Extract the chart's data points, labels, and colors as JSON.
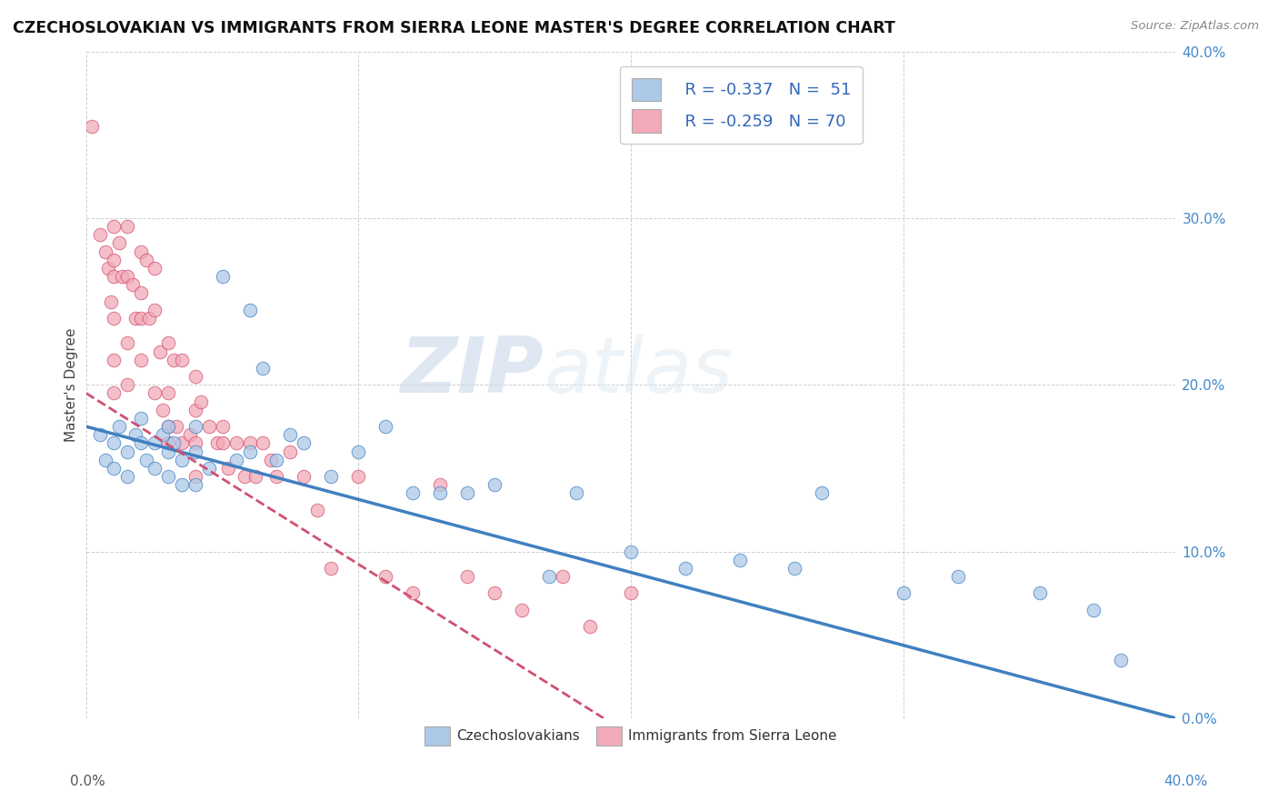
{
  "title": "CZECHOSLOVAKIAN VS IMMIGRANTS FROM SIERRA LEONE MASTER'S DEGREE CORRELATION CHART",
  "source": "Source: ZipAtlas.com",
  "ylabel": "Master's Degree",
  "legend_blue_R": "R = -0.337",
  "legend_blue_N": "N =  51",
  "legend_pink_R": "R = -0.259",
  "legend_pink_N": "N = 70",
  "legend1_label": "Czechoslovakians",
  "legend2_label": "Immigrants from Sierra Leone",
  "blue_color": "#adc9e8",
  "blue_line_color": "#4080c0",
  "pink_color": "#f2aab8",
  "pink_line_color": "#d05070",
  "watermark_zip": "ZIP",
  "watermark_atlas": "atlas",
  "xlim": [
    0.0,
    0.4
  ],
  "ylim": [
    0.0,
    0.4
  ],
  "ytick_values": [
    0.0,
    0.1,
    0.2,
    0.3,
    0.4
  ],
  "xtick_values": [
    0.0,
    0.1,
    0.2,
    0.3,
    0.4
  ],
  "blue_scatter_x": [
    0.005,
    0.007,
    0.01,
    0.01,
    0.012,
    0.015,
    0.015,
    0.018,
    0.02,
    0.02,
    0.022,
    0.025,
    0.025,
    0.028,
    0.03,
    0.03,
    0.03,
    0.032,
    0.035,
    0.035,
    0.04,
    0.04,
    0.04,
    0.045,
    0.05,
    0.055,
    0.06,
    0.06,
    0.065,
    0.07,
    0.075,
    0.08,
    0.09,
    0.1,
    0.11,
    0.12,
    0.13,
    0.14,
    0.15,
    0.17,
    0.18,
    0.2,
    0.22,
    0.24,
    0.26,
    0.27,
    0.3,
    0.32,
    0.35,
    0.37,
    0.38
  ],
  "blue_scatter_y": [
    0.17,
    0.155,
    0.165,
    0.15,
    0.175,
    0.16,
    0.145,
    0.17,
    0.18,
    0.165,
    0.155,
    0.165,
    0.15,
    0.17,
    0.175,
    0.16,
    0.145,
    0.165,
    0.155,
    0.14,
    0.175,
    0.16,
    0.14,
    0.15,
    0.265,
    0.155,
    0.245,
    0.16,
    0.21,
    0.155,
    0.17,
    0.165,
    0.145,
    0.16,
    0.175,
    0.135,
    0.135,
    0.135,
    0.14,
    0.085,
    0.135,
    0.1,
    0.09,
    0.095,
    0.09,
    0.135,
    0.075,
    0.085,
    0.075,
    0.065,
    0.035
  ],
  "pink_scatter_x": [
    0.002,
    0.005,
    0.007,
    0.008,
    0.009,
    0.01,
    0.01,
    0.01,
    0.01,
    0.01,
    0.01,
    0.012,
    0.013,
    0.015,
    0.015,
    0.015,
    0.015,
    0.017,
    0.018,
    0.02,
    0.02,
    0.02,
    0.02,
    0.022,
    0.023,
    0.025,
    0.025,
    0.025,
    0.027,
    0.028,
    0.03,
    0.03,
    0.03,
    0.03,
    0.032,
    0.033,
    0.035,
    0.035,
    0.038,
    0.04,
    0.04,
    0.04,
    0.04,
    0.042,
    0.045,
    0.048,
    0.05,
    0.05,
    0.052,
    0.055,
    0.058,
    0.06,
    0.062,
    0.065,
    0.068,
    0.07,
    0.075,
    0.08,
    0.085,
    0.09,
    0.1,
    0.11,
    0.12,
    0.13,
    0.14,
    0.15,
    0.16,
    0.175,
    0.185,
    0.2
  ],
  "pink_scatter_y": [
    0.355,
    0.29,
    0.28,
    0.27,
    0.25,
    0.295,
    0.275,
    0.265,
    0.24,
    0.215,
    0.195,
    0.285,
    0.265,
    0.295,
    0.265,
    0.225,
    0.2,
    0.26,
    0.24,
    0.28,
    0.255,
    0.24,
    0.215,
    0.275,
    0.24,
    0.27,
    0.245,
    0.195,
    0.22,
    0.185,
    0.225,
    0.195,
    0.175,
    0.165,
    0.215,
    0.175,
    0.215,
    0.165,
    0.17,
    0.205,
    0.185,
    0.165,
    0.145,
    0.19,
    0.175,
    0.165,
    0.175,
    0.165,
    0.15,
    0.165,
    0.145,
    0.165,
    0.145,
    0.165,
    0.155,
    0.145,
    0.16,
    0.145,
    0.125,
    0.09,
    0.145,
    0.085,
    0.075,
    0.14,
    0.085,
    0.075,
    0.065,
    0.085,
    0.055,
    0.075
  ],
  "blue_line_x0": 0.0,
  "blue_line_y0": 0.175,
  "blue_line_x1": 0.4,
  "blue_line_y1": 0.0,
  "pink_line_x0": 0.0,
  "pink_line_y0": 0.195,
  "pink_line_x1": 0.19,
  "pink_line_y1": 0.0
}
